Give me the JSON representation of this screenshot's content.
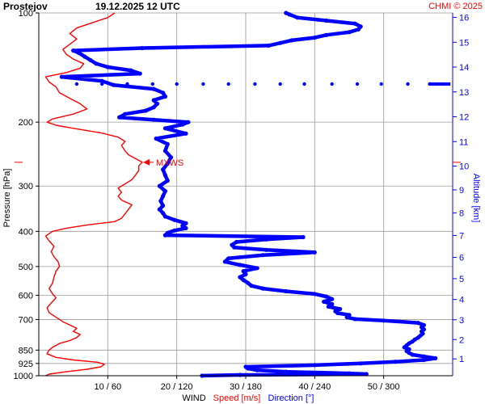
{
  "chart_data": {
    "type": "line",
    "title": "Prostejov",
    "date_label": "19.12.2025 12 UTC",
    "credit": "CHMI © 2025",
    "ylabel": "Pressure [hPa]",
    "y2label": "Altitude [km]",
    "xlabel_wind": "WIND",
    "xlabel_speed": "Speed [m/s]",
    "xlabel_direction": "Direction [°]",
    "pressure_ticks": [
      100,
      200,
      300,
      400,
      500,
      600,
      700,
      850,
      925,
      1000
    ],
    "altitude_ticks": [
      1,
      2,
      3,
      4,
      5,
      6,
      7,
      8,
      9,
      10,
      11,
      12,
      13,
      14,
      15,
      16
    ],
    "x_ticks": [
      "10 / 60",
      "20 / 120",
      "30 / 180",
      "40 / 240",
      "50 / 300"
    ],
    "x_tick_values_speed": [
      10,
      20,
      30,
      40,
      50
    ],
    "speed_range": [
      0,
      60
    ],
    "direction_range": [
      0,
      360
    ],
    "pressure_range": [
      1000,
      100
    ],
    "log_pressure": true,
    "grid": true,
    "mxws_label": "MXWS",
    "mxws": {
      "pressure": 258,
      "speed": 15
    },
    "colors": {
      "speed": "#ff0000",
      "direction": "#0000ff",
      "grid": "#9a9a9a"
    },
    "series": [
      {
        "name": "Speed [m/s]",
        "variable": "speed",
        "points": [
          [
            1000,
            1
          ],
          [
            990,
            1.5
          ],
          [
            975,
            4
          ],
          [
            960,
            7
          ],
          [
            945,
            9
          ],
          [
            930,
            9.5
          ],
          [
            918,
            8.5
          ],
          [
            905,
            5
          ],
          [
            890,
            2.5
          ],
          [
            870,
            1.2
          ],
          [
            850,
            1.5
          ],
          [
            835,
            2
          ],
          [
            815,
            3
          ],
          [
            800,
            4.5
          ],
          [
            785,
            5.5
          ],
          [
            770,
            6
          ],
          [
            755,
            5
          ],
          [
            740,
            5.5
          ],
          [
            725,
            4.5
          ],
          [
            710,
            3.5
          ],
          [
            690,
            2.5
          ],
          [
            670,
            1.5
          ],
          [
            650,
            1.2
          ],
          [
            630,
            1.8
          ],
          [
            610,
            2.5
          ],
          [
            595,
            2
          ],
          [
            575,
            1.5
          ],
          [
            555,
            2
          ],
          [
            535,
            2.2
          ],
          [
            515,
            2.5
          ],
          [
            500,
            3
          ],
          [
            485,
            2.8
          ],
          [
            470,
            2.2
          ],
          [
            455,
            1.8
          ],
          [
            440,
            2.2
          ],
          [
            425,
            1.5
          ],
          [
            412,
            1
          ],
          [
            400,
            2
          ],
          [
            392,
            4
          ],
          [
            384,
            7
          ],
          [
            376,
            11
          ],
          [
            368,
            12
          ],
          [
            358,
            12.5
          ],
          [
            348,
            13
          ],
          [
            338,
            13.5
          ],
          [
            328,
            12
          ],
          [
            320,
            11.5
          ],
          [
            312,
            12
          ],
          [
            304,
            11.5
          ],
          [
            296,
            12.5
          ],
          [
            288,
            13.5
          ],
          [
            280,
            14
          ],
          [
            272,
            14.5
          ],
          [
            264,
            14.5
          ],
          [
            258,
            15
          ],
          [
            252,
            14
          ],
          [
            246,
            13
          ],
          [
            240,
            12.5
          ],
          [
            232,
            12
          ],
          [
            226,
            12.5
          ],
          [
            220,
            11.5
          ],
          [
            214,
            9
          ],
          [
            208,
            5
          ],
          [
            204,
            2.5
          ],
          [
            200,
            1.2
          ],
          [
            196,
            2
          ],
          [
            190,
            5
          ],
          [
            184,
            7
          ],
          [
            178,
            6
          ],
          [
            172,
            4.5
          ],
          [
            166,
            3
          ],
          [
            160,
            2.5
          ],
          [
            155,
            1.5
          ],
          [
            150,
            1
          ],
          [
            146,
            4
          ],
          [
            142,
            6
          ],
          [
            138,
            6.5
          ],
          [
            134,
            5
          ],
          [
            130,
            4
          ],
          [
            126,
            3.5
          ],
          [
            122,
            4.5
          ],
          [
            118,
            5.5
          ],
          [
            114,
            4.5
          ],
          [
            110,
            5.5
          ],
          [
            106,
            8
          ],
          [
            103,
            10
          ],
          [
            100,
            11
          ]
        ]
      },
      {
        "name": "Direction [°]",
        "variable": "direction",
        "points": [
          [
            1000,
            142
          ],
          [
            995,
            175
          ],
          [
            990,
            285
          ],
          [
            985,
            270
          ],
          [
            975,
            215
          ],
          [
            965,
            190
          ],
          [
            955,
            182
          ],
          [
            945,
            180
          ],
          [
            935,
            240
          ],
          [
            925,
            280
          ],
          [
            915,
            310
          ],
          [
            905,
            335
          ],
          [
            895,
            345
          ],
          [
            885,
            335
          ],
          [
            875,
            325
          ],
          [
            865,
            322
          ],
          [
            855,
            320
          ],
          [
            845,
            322
          ],
          [
            835,
            318
          ],
          [
            825,
            320
          ],
          [
            815,
            322
          ],
          [
            805,
            325
          ],
          [
            795,
            327
          ],
          [
            785,
            330
          ],
          [
            775,
            332
          ],
          [
            765,
            334
          ],
          [
            755,
            333
          ],
          [
            745,
            335
          ],
          [
            735,
            333
          ],
          [
            725,
            335
          ],
          [
            715,
            330
          ],
          [
            705,
            300
          ],
          [
            698,
            275
          ],
          [
            690,
            268
          ],
          [
            680,
            270
          ],
          [
            672,
            260
          ],
          [
            664,
            258
          ],
          [
            655,
            262
          ],
          [
            645,
            252
          ],
          [
            635,
            255
          ],
          [
            625,
            248
          ],
          [
            615,
            255
          ],
          [
            605,
            250
          ],
          [
            595,
            240
          ],
          [
            585,
            215
          ],
          [
            575,
            195
          ],
          [
            565,
            185
          ],
          [
            555,
            182
          ],
          [
            545,
            178
          ],
          [
            535,
            175
          ],
          [
            525,
            180
          ],
          [
            515,
            178
          ],
          [
            505,
            190
          ],
          [
            495,
            175
          ],
          [
            485,
            162
          ],
          [
            475,
            165
          ],
          [
            465,
            195
          ],
          [
            457,
            240
          ],
          [
            450,
            198
          ],
          [
            443,
            170
          ],
          [
            436,
            168
          ],
          [
            428,
            172
          ],
          [
            421,
            198
          ],
          [
            415,
            230
          ],
          [
            410,
            110
          ],
          [
            404,
            112
          ],
          [
            398,
            118
          ],
          [
            392,
            128
          ],
          [
            386,
            125
          ],
          [
            380,
            128
          ],
          [
            372,
            118
          ],
          [
            364,
            110
          ],
          [
            356,
            108
          ],
          [
            348,
            105
          ],
          [
            340,
            108
          ],
          [
            330,
            106
          ],
          [
            320,
            108
          ],
          [
            310,
            110
          ],
          [
            300,
            105
          ],
          [
            290,
            112
          ],
          [
            280,
            110
          ],
          [
            270,
            108
          ],
          [
            260,
            112
          ],
          [
            250,
            115
          ],
          [
            240,
            110
          ],
          [
            230,
            112
          ],
          [
            222,
            102
          ],
          [
            215,
            128
          ],
          [
            208,
            110
          ],
          [
            203,
            125
          ],
          [
            200,
            130
          ],
          [
            197,
            100
          ],
          [
            194,
            70
          ],
          [
            190,
            75
          ],
          [
            186,
            93
          ],
          [
            182,
            100
          ],
          [
            178,
            103
          ],
          [
            174,
            100
          ],
          [
            170,
            110
          ],
          [
            166,
            108
          ],
          [
            162,
            100
          ],
          [
            158,
            65
          ],
          [
            154,
            55
          ],
          [
            150,
            20
          ],
          [
            147,
            88
          ],
          [
            144,
            80
          ],
          [
            141,
            60
          ],
          [
            138,
            50
          ],
          [
            135,
            45
          ],
          [
            132,
            40
          ],
          [
            129,
            35
          ],
          [
            127,
            30
          ],
          [
            125,
            90
          ],
          [
            123,
            200
          ],
          [
            121,
            210
          ],
          [
            119,
            220
          ],
          [
            117,
            240
          ],
          [
            115,
            250
          ],
          [
            113,
            270
          ],
          [
            111,
            278
          ],
          [
            109,
            280
          ],
          [
            107,
            275
          ],
          [
            105,
            250
          ],
          [
            103,
            225
          ],
          [
            101,
            218
          ],
          [
            100,
            215
          ]
        ]
      }
    ],
    "direction_dotted_row": {
      "pressure": 157,
      "directions": [
        33,
        55,
        77,
        99,
        120,
        143,
        165,
        188,
        210,
        231,
        255,
        277,
        298,
        321,
        340
      ]
    }
  }
}
